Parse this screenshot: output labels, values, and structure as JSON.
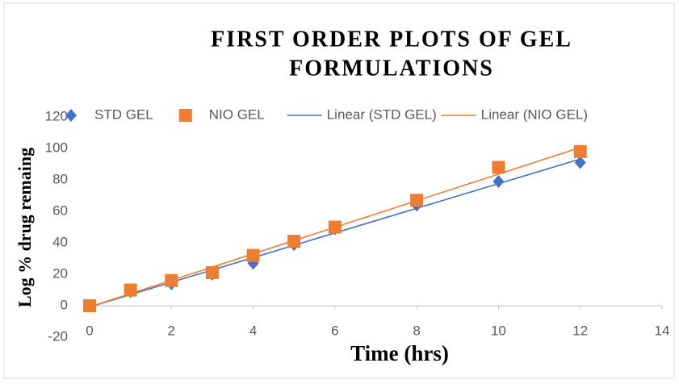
{
  "chart_data": {
    "type": "scatter",
    "title": [
      "FIRST ORDER PLOTS OF GEL",
      "FORMULATIONS"
    ],
    "x_label": "Time (hrs)",
    "y_label": "Log % drug remaing",
    "x": [
      0,
      1,
      2,
      3,
      4,
      5,
      6,
      8,
      10,
      12
    ],
    "series": [
      {
        "name": "STD GEL",
        "color": "#4472c4",
        "marker": "diamond",
        "values": [
          0,
          9,
          14,
          20,
          27,
          39,
          49,
          64,
          79,
          91
        ],
        "trendline": {
          "type": "linear",
          "name": "Linear (STD GEL)",
          "color": "#4472c4"
        }
      },
      {
        "name": "NIO GEL",
        "color": "#ed7d31",
        "marker": "square",
        "values": [
          0,
          10,
          16,
          21,
          32,
          41,
          50,
          67,
          88,
          98
        ],
        "trendline": {
          "type": "linear",
          "name": "Linear (NIO GEL)",
          "color": "#ed7d31"
        }
      }
    ],
    "xlim": [
      0,
      14
    ],
    "xticks": [
      0,
      2,
      4,
      6,
      8,
      10,
      12,
      14
    ],
    "ylim": [
      -20,
      120
    ],
    "yticks": [
      -20,
      0,
      20,
      40,
      60,
      80,
      100,
      120
    ],
    "grid": false,
    "legend": "top"
  }
}
